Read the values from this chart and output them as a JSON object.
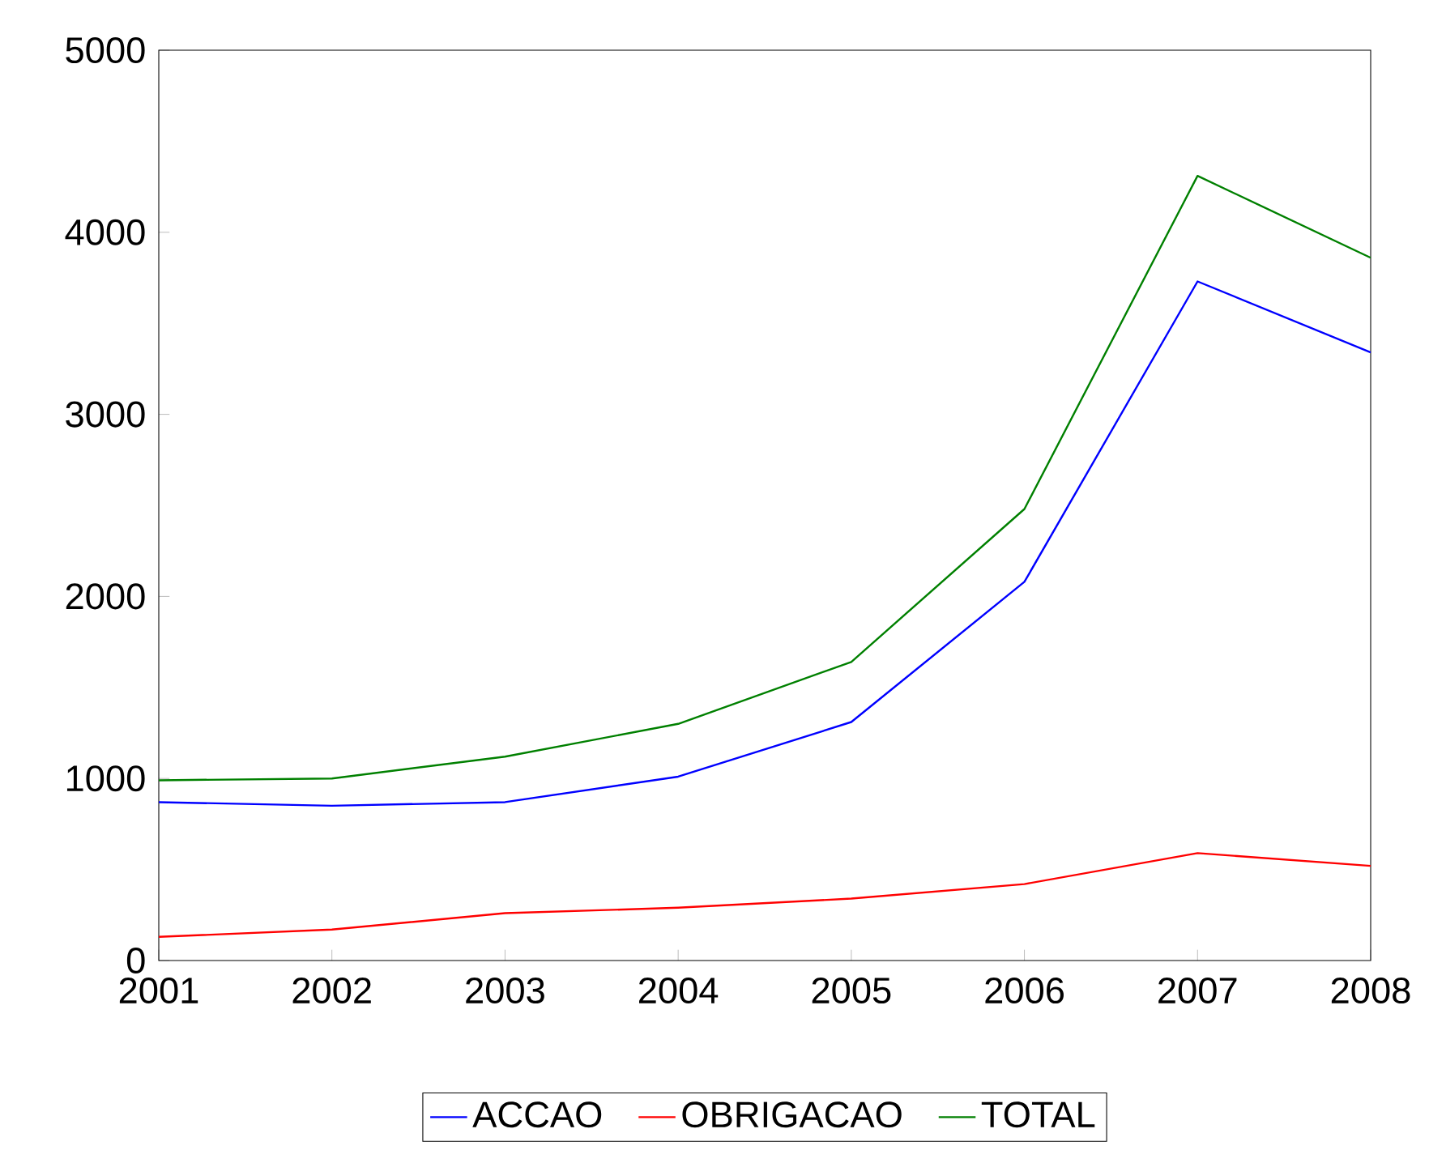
{
  "chart_data": {
    "type": "line",
    "x": [
      2001,
      2002,
      2003,
      2004,
      2005,
      2006,
      2007,
      2008
    ],
    "series": [
      {
        "name": "ACCAO",
        "color": "#0000ff",
        "values": [
          870,
          850,
          870,
          1010,
          1310,
          2080,
          3730,
          3340
        ]
      },
      {
        "name": "OBRIGACAO",
        "color": "#ff0000",
        "values": [
          130,
          170,
          260,
          290,
          340,
          420,
          590,
          520
        ]
      },
      {
        "name": "TOTAL",
        "color": "#008000",
        "values": [
          990,
          1000,
          1120,
          1300,
          1640,
          2480,
          4310,
          3860
        ]
      }
    ],
    "xlim": [
      2001,
      2008
    ],
    "ylim": [
      0,
      5000
    ],
    "xticks": [
      2001,
      2002,
      2003,
      2004,
      2005,
      2006,
      2007,
      2008
    ],
    "yticks": [
      0,
      1000,
      2000,
      3000,
      4000,
      5000
    ],
    "legend": "bottom"
  }
}
